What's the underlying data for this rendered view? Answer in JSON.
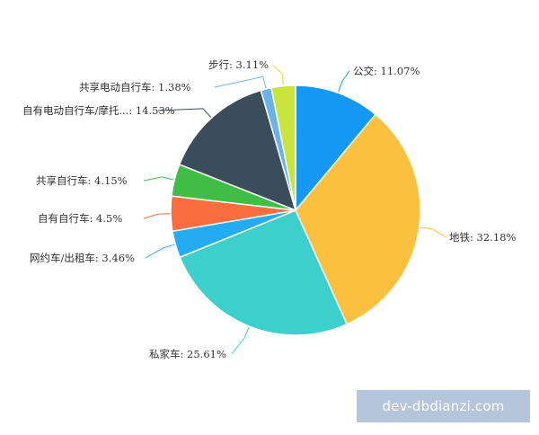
{
  "chart_data": {
    "type": "pie",
    "start_angle_deg": 90,
    "direction": "clockwise",
    "slices": [
      {
        "label": "公交",
        "value": 11.07,
        "display": "公交: 11.07%",
        "color": "#1598f5"
      },
      {
        "label": "地铁",
        "value": 32.18,
        "display": "地铁: 32.18%",
        "color": "#fbc03d"
      },
      {
        "label": "私家车",
        "value": 25.61,
        "display": "私家车: 25.61%",
        "color": "#3dcfcb"
      },
      {
        "label": "网约车/出租车",
        "value": 3.46,
        "display": "网约车/出租车: 3.46%",
        "color": "#23acf2"
      },
      {
        "label": "自有自行车",
        "value": 4.5,
        "display": "自有自行车: 4.5%",
        "color": "#fa6d3f"
      },
      {
        "label": "共享自行车",
        "value": 4.15,
        "display": "共享自行车: 4.15%",
        "color": "#3fbd44"
      },
      {
        "label": "自有电动自行车/摩托...",
        "value": 14.53,
        "display": "自有电动自行车/摩托...: 14.53%",
        "color": "#3a4d5a"
      },
      {
        "label": "共享电动自行车",
        "value": 1.38,
        "display": "共享电动自行车: 1.38%",
        "color": "#69b3eb"
      },
      {
        "label": "步行",
        "value": 3.11,
        "display": "步行: 3.11%",
        "color": "#c9e43c"
      }
    ]
  },
  "watermark": {
    "text": "dev-dbdianzi.com"
  }
}
